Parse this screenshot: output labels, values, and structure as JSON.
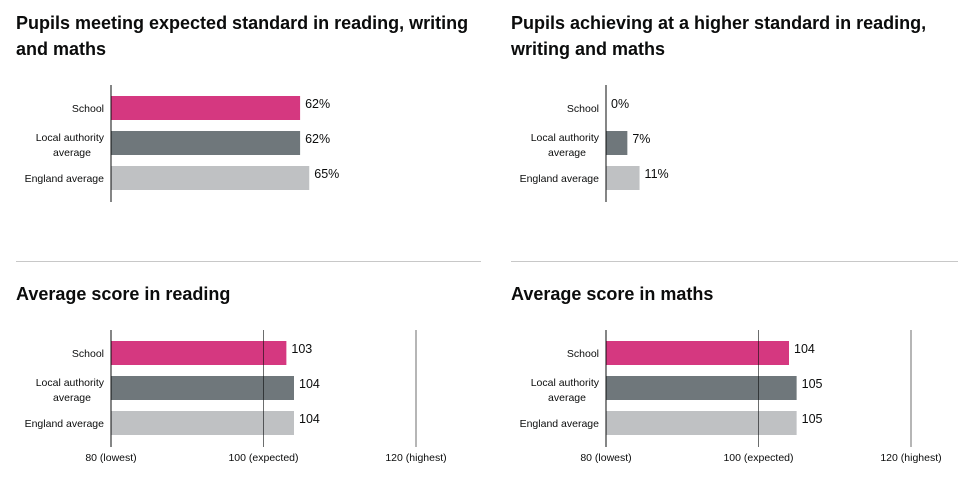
{
  "colors": {
    "school": "#d53880",
    "local": "#6f777b",
    "england": "#bfc1c3"
  },
  "chart_data": [
    {
      "type": "bar",
      "title": "Pupils meeting expected standard in reading, writing and maths",
      "categories": [
        "School",
        "Local authority average",
        "England average"
      ],
      "values": [
        62,
        62,
        65
      ],
      "value_labels": [
        "62%",
        "62%",
        "65%"
      ],
      "xlim": [
        0,
        100
      ],
      "tick_labels": []
    },
    {
      "type": "bar",
      "title": "Pupils achieving at a higher standard in reading, writing and maths",
      "categories": [
        "School",
        "Local authority average",
        "England average"
      ],
      "values": [
        0,
        7,
        11
      ],
      "value_labels": [
        "0%",
        "7%",
        "11%"
      ],
      "xlim": [
        0,
        100
      ],
      "tick_labels": []
    },
    {
      "type": "bar",
      "title": "Average score in reading",
      "categories": [
        "School",
        "Local authority average",
        "England average"
      ],
      "values": [
        103,
        104,
        104
      ],
      "value_labels": [
        "103",
        "104",
        "104"
      ],
      "xlim": [
        80,
        120
      ],
      "ticks": [
        80,
        100,
        120
      ],
      "tick_labels": [
        "80 (lowest)",
        "100 (expected)",
        "120 (highest)"
      ]
    },
    {
      "type": "bar",
      "title": "Average score in maths",
      "categories": [
        "School",
        "Local authority average",
        "England average"
      ],
      "values": [
        104,
        105,
        105
      ],
      "value_labels": [
        "104",
        "105",
        "105"
      ],
      "xlim": [
        80,
        120
      ],
      "ticks": [
        80,
        100,
        120
      ],
      "tick_labels": [
        "80 (lowest)",
        "100 (expected)",
        "120 (highest)"
      ]
    }
  ]
}
